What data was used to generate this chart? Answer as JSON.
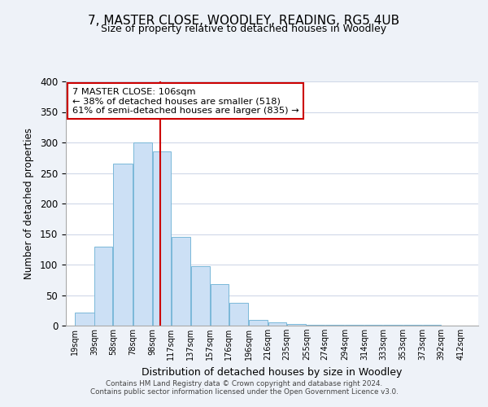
{
  "title": "7, MASTER CLOSE, WOODLEY, READING, RG5 4UB",
  "subtitle": "Size of property relative to detached houses in Woodley",
  "xlabel": "Distribution of detached houses by size in Woodley",
  "ylabel": "Number of detached properties",
  "bar_color": "#cce0f5",
  "bar_edge_color": "#7ab8d9",
  "background_color": "#eef2f8",
  "plot_bg_color": "#ffffff",
  "grid_color": "#d0d8e8",
  "bar_left_edges": [
    19,
    39,
    58,
    78,
    98,
    117,
    137,
    157,
    176,
    196,
    216,
    235,
    255,
    274,
    294,
    314,
    333,
    353,
    373,
    392
  ],
  "bar_widths": [
    20,
    19,
    20,
    20,
    19,
    20,
    20,
    19,
    20,
    20,
    19,
    20,
    19,
    20,
    20,
    19,
    20,
    20,
    19,
    20
  ],
  "bar_heights": [
    22,
    130,
    265,
    300,
    285,
    145,
    98,
    68,
    38,
    10,
    5,
    3,
    2,
    2,
    2,
    2,
    1,
    1,
    1,
    0
  ],
  "xtick_labels": [
    "19sqm",
    "39sqm",
    "58sqm",
    "78sqm",
    "98sqm",
    "117sqm",
    "137sqm",
    "157sqm",
    "176sqm",
    "196sqm",
    "216sqm",
    "235sqm",
    "255sqm",
    "274sqm",
    "294sqm",
    "314sqm",
    "333sqm",
    "353sqm",
    "373sqm",
    "392sqm",
    "412sqm"
  ],
  "xtick_positions": [
    19,
    39,
    58,
    78,
    98,
    117,
    137,
    157,
    176,
    196,
    216,
    235,
    255,
    274,
    294,
    314,
    333,
    353,
    373,
    392,
    412
  ],
  "ylim": [
    0,
    400
  ],
  "xlim": [
    10,
    430
  ],
  "yticks": [
    0,
    50,
    100,
    150,
    200,
    250,
    300,
    350,
    400
  ],
  "vline_x": 106,
  "vline_color": "#cc0000",
  "annotation_title": "7 MASTER CLOSE: 106sqm",
  "annotation_line1": "← 38% of detached houses are smaller (518)",
  "annotation_line2": "61% of semi-detached houses are larger (835) →",
  "annotation_box_color": "#ffffff",
  "annotation_box_edge": "#cc0000",
  "footer_line1": "Contains HM Land Registry data © Crown copyright and database right 2024.",
  "footer_line2": "Contains public sector information licensed under the Open Government Licence v3.0."
}
